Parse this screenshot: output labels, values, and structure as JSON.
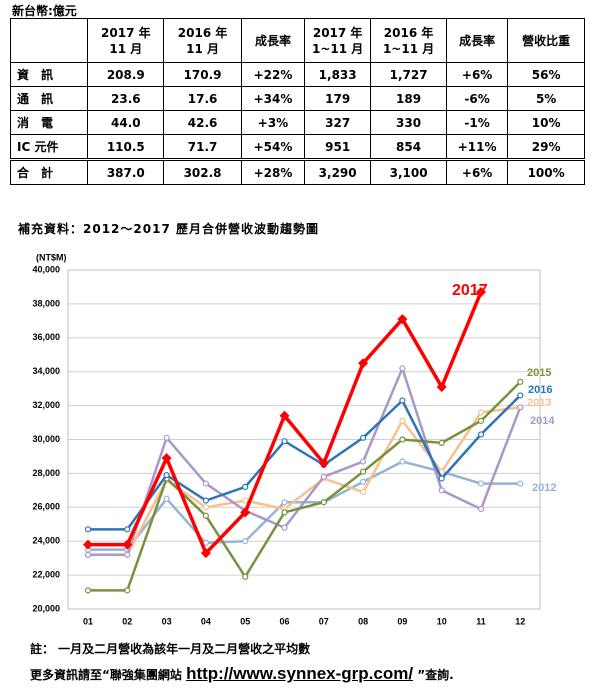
{
  "unit": "新台幣:億元",
  "table": {
    "header": [
      "",
      [
        "2017 年",
        "11 月"
      ],
      [
        "2016 年",
        "11 月"
      ],
      "成長率",
      [
        "2017 年",
        "1~11 月"
      ],
      [
        "2016 年",
        "1~11 月"
      ],
      "成長率",
      "營收比重"
    ],
    "rows": [
      [
        "資　訊",
        "208.9",
        "170.9",
        "+22%",
        "1,833",
        "1,727",
        "+6%",
        "56%"
      ],
      [
        "通　訊",
        "23.6",
        "17.6",
        "+34%",
        "179",
        "189",
        "-6%",
        "5%"
      ],
      [
        "消　電",
        "44.0",
        "42.6",
        "+3%",
        "327",
        "330",
        "-1%",
        "10%"
      ],
      [
        "IC 元件",
        "110.5",
        "71.7",
        "+54%",
        "951",
        "854",
        "+11%",
        "29%"
      ],
      [
        "合　計",
        "387.0",
        "302.8",
        "+28%",
        "3,290",
        "3,100",
        "+6%",
        "100%"
      ]
    ]
  },
  "subtitle": "補充資料：2012～2017 歷月合併營收波動趨勢圖",
  "chart_data": {
    "type": "line",
    "y_label": "(NT$M)",
    "categories": [
      "01",
      "02",
      "03",
      "04",
      "05",
      "06",
      "07",
      "08",
      "09",
      "10",
      "11",
      "12"
    ],
    "ylim": [
      20000,
      40000
    ],
    "yticks": [
      {
        "value": 20000,
        "label": "20,000"
      },
      {
        "value": 22000,
        "label": "22,000"
      },
      {
        "value": 24000,
        "label": "24,000"
      },
      {
        "value": 26000,
        "label": "26,000"
      },
      {
        "value": 28000,
        "label": "28,000"
      },
      {
        "value": 30000,
        "label": "30,000"
      },
      {
        "value": 32000,
        "label": "32,000"
      },
      {
        "value": 34000,
        "label": "34,000"
      },
      {
        "value": 36000,
        "label": "36,000"
      },
      {
        "value": 38000,
        "label": "38,000"
      },
      {
        "value": 40000,
        "label": "40,000"
      }
    ],
    "grid": true,
    "series": [
      {
        "name": "2017",
        "color": "#ff0000",
        "values": [
          23800,
          23800,
          28900,
          23300,
          25700,
          31400,
          28600,
          34500,
          37100,
          33100,
          38700,
          null
        ]
      },
      {
        "name": "2016",
        "color": "#2e75b6",
        "values": [
          24700,
          24700,
          27900,
          26400,
          27200,
          29900,
          28500,
          30100,
          32300,
          27700,
          30300,
          32600
        ]
      },
      {
        "name": "2015",
        "color": "#76923c",
        "values": [
          21100,
          21100,
          27700,
          25500,
          21900,
          25700,
          26300,
          28100,
          30000,
          29800,
          31100,
          33400
        ]
      },
      {
        "name": "2014",
        "color": "#a997c9",
        "values": [
          23200,
          23200,
          30100,
          27400,
          25800,
          24800,
          27800,
          28700,
          34200,
          27000,
          25900,
          31900
        ]
      },
      {
        "name": "2013",
        "color": "#fabf8f",
        "values": [
          23200,
          23200,
          27600,
          26000,
          26400,
          25900,
          27700,
          26900,
          31100,
          28100,
          31600,
          31900
        ]
      },
      {
        "name": "2012",
        "color": "#95b3d7",
        "values": [
          23500,
          23500,
          26500,
          23900,
          24000,
          26300,
          26300,
          27500,
          28700,
          28100,
          27400,
          27400
        ]
      }
    ]
  },
  "note": "註： 一月及二月營收為該年一月及二月營收之平均數",
  "footer": {
    "prefix": "更多資訊請至“聯強集團網站 ",
    "link": "http://www.synnex-grp.com/",
    "suffix": " ”查詢."
  }
}
